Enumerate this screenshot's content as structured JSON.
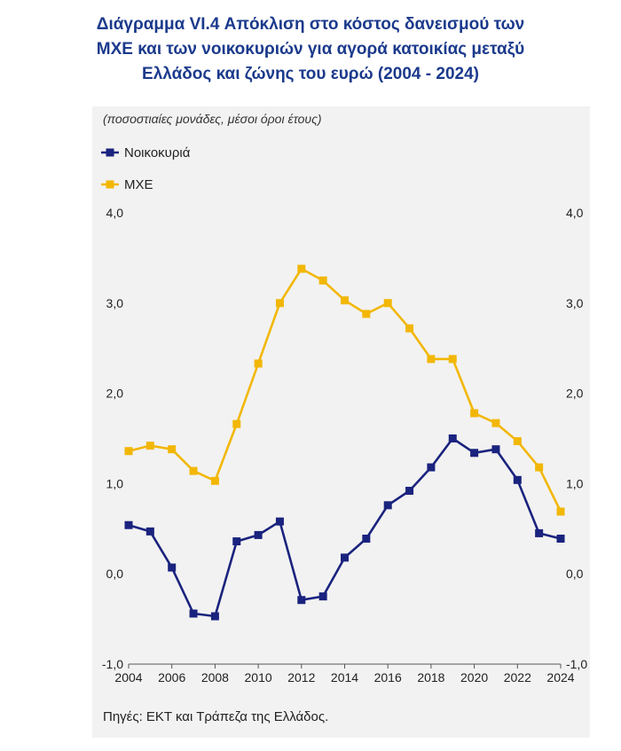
{
  "header": {
    "title_lines": [
      "Διάγραμμα VI.4 Απόκλιση στο κόστος δανεισμού των",
      "ΜΧΕ και των νοικοκυριών για αγορά κατοικίας μεταξύ",
      "Ελλάδος και ζώνης του ευρώ (2004 - 2024)"
    ]
  },
  "subtitle": "(ποσοστιαίες μονάδες, μέσοι όροι έτους)",
  "source": "Πηγές: ΕΚΤ και Τράπεζα της Ελλάδος.",
  "chart_data": {
    "type": "line",
    "title": "Διάγραμμα VI.4 Απόκλιση στο κόστος δανεισμού των ΜΧΕ και των νοικοκυριών για αγορά κατοικίας μεταξύ Ελλάδος και ζώνης του ευρώ (2004 - 2024)",
    "x": [
      2004,
      2005,
      2006,
      2007,
      2008,
      2009,
      2010,
      2011,
      2012,
      2013,
      2014,
      2015,
      2016,
      2017,
      2018,
      2019,
      2020,
      2021,
      2022,
      2023,
      2024
    ],
    "x_tick_labels": [
      "2004",
      "2006",
      "2008",
      "2010",
      "2012",
      "2014",
      "2016",
      "2018",
      "2020",
      "2022",
      "2024"
    ],
    "x_ticks": [
      2004,
      2006,
      2008,
      2010,
      2012,
      2014,
      2016,
      2018,
      2020,
      2022,
      2024
    ],
    "y_tick_labels": [
      "4,0",
      "3,0",
      "2,0",
      "1,0",
      "0,0",
      "-1,0"
    ],
    "y_ticks": [
      4,
      3,
      2,
      1,
      0,
      -1
    ],
    "ylim": [
      -1,
      4
    ],
    "xlim": [
      2004,
      2024
    ],
    "xlabel": "",
    "ylabel": "",
    "grid": false,
    "legend_position": "top-left",
    "series": [
      {
        "name": "Νοικοκυριά",
        "color": "#1a237e",
        "values": [
          0.54,
          0.47,
          0.07,
          -0.44,
          -0.47,
          0.36,
          0.43,
          0.58,
          -0.29,
          -0.25,
          0.18,
          0.39,
          0.76,
          0.92,
          1.18,
          1.5,
          1.34,
          1.38,
          1.04,
          0.45,
          0.39
        ]
      },
      {
        "name": "ΜΧΕ",
        "color": "#f2b705",
        "values": [
          1.36,
          1.42,
          1.38,
          1.14,
          1.03,
          1.66,
          2.33,
          3.0,
          3.38,
          3.25,
          3.03,
          2.88,
          3.0,
          2.72,
          2.38,
          2.38,
          1.78,
          1.67,
          1.47,
          1.18,
          0.69
        ]
      }
    ]
  }
}
